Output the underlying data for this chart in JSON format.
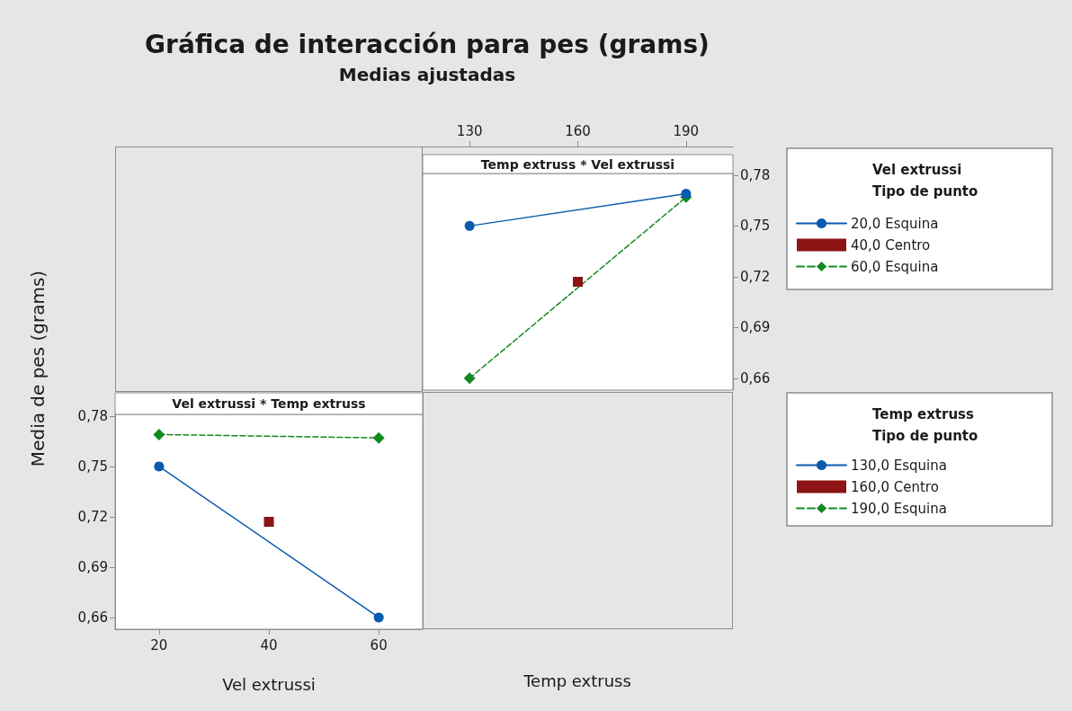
{
  "chart_data": [
    {
      "type": "line",
      "title": "Gráfica de interacción para pes (grams)",
      "subtitle": "Medias ajustadas",
      "annotations": [
        "Temp extruss * Vel extrussi"
      ],
      "xlabel": "Temp extruss",
      "ylabel": "Media de pes (grams)",
      "xlim": [
        117,
        203
      ],
      "xticks": [
        130,
        160,
        190
      ],
      "ylim": [
        0.653,
        0.781
      ],
      "yticks": [
        {
          "value": 0.66,
          "label": "0,66"
        },
        {
          "value": 0.69,
          "label": "0,69"
        },
        {
          "value": 0.72,
          "label": "0,72"
        },
        {
          "value": 0.75,
          "label": "0,75"
        },
        {
          "value": 0.78,
          "label": "0,78"
        }
      ],
      "legend": "right",
      "legend_title": "Vel extrussi Tipo de punto",
      "series": [
        {
          "name": "20,0 Esquina",
          "type": "line",
          "color": "#0a5aad",
          "marker": "circle",
          "line_style": "solid",
          "x": [
            130,
            190
          ],
          "values": [
            0.75,
            0.769
          ]
        },
        {
          "name": "40,0 Centro",
          "type": "scatter",
          "color": "#8c1414",
          "marker": "square",
          "x": [
            160
          ],
          "values": [
            0.717
          ]
        },
        {
          "name": "60,0 Esquina",
          "type": "line",
          "color": "#138a20",
          "marker": "diamond",
          "line_style": "dashed",
          "x": [
            130,
            190
          ],
          "values": [
            0.66,
            0.767
          ]
        }
      ]
    },
    {
      "type": "line",
      "title": "Vel extrussi * Temp extruss",
      "xlabel": "Vel extrussi",
      "xlim": [
        12,
        68
      ],
      "xticks": [
        20,
        40,
        60
      ],
      "ylim": [
        0.653,
        0.781
      ],
      "yticks": [
        {
          "value": 0.66,
          "label": "0,66"
        },
        {
          "value": 0.69,
          "label": "0,69"
        },
        {
          "value": 0.72,
          "label": "0,72"
        },
        {
          "value": 0.75,
          "label": "0,75"
        },
        {
          "value": 0.78,
          "label": "0,78"
        }
      ],
      "legend": "right",
      "legend_title": "Temp extruss Tipo de punto",
      "series": [
        {
          "name": "130,0 Esquina",
          "type": "line",
          "color": "#0a5aad",
          "marker": "circle",
          "line_style": "solid",
          "x": [
            20,
            60
          ],
          "values": [
            0.75,
            0.66
          ]
        },
        {
          "name": "160,0 Centro",
          "type": "scatter",
          "color": "#8c1414",
          "marker": "square",
          "x": [
            40
          ],
          "values": [
            0.717
          ]
        },
        {
          "name": "190,0 Esquina",
          "type": "line",
          "color": "#138a20",
          "marker": "diamond",
          "line_style": "dashed",
          "x": [
            20,
            60
          ],
          "values": [
            0.769,
            0.767
          ]
        }
      ]
    }
  ]
}
